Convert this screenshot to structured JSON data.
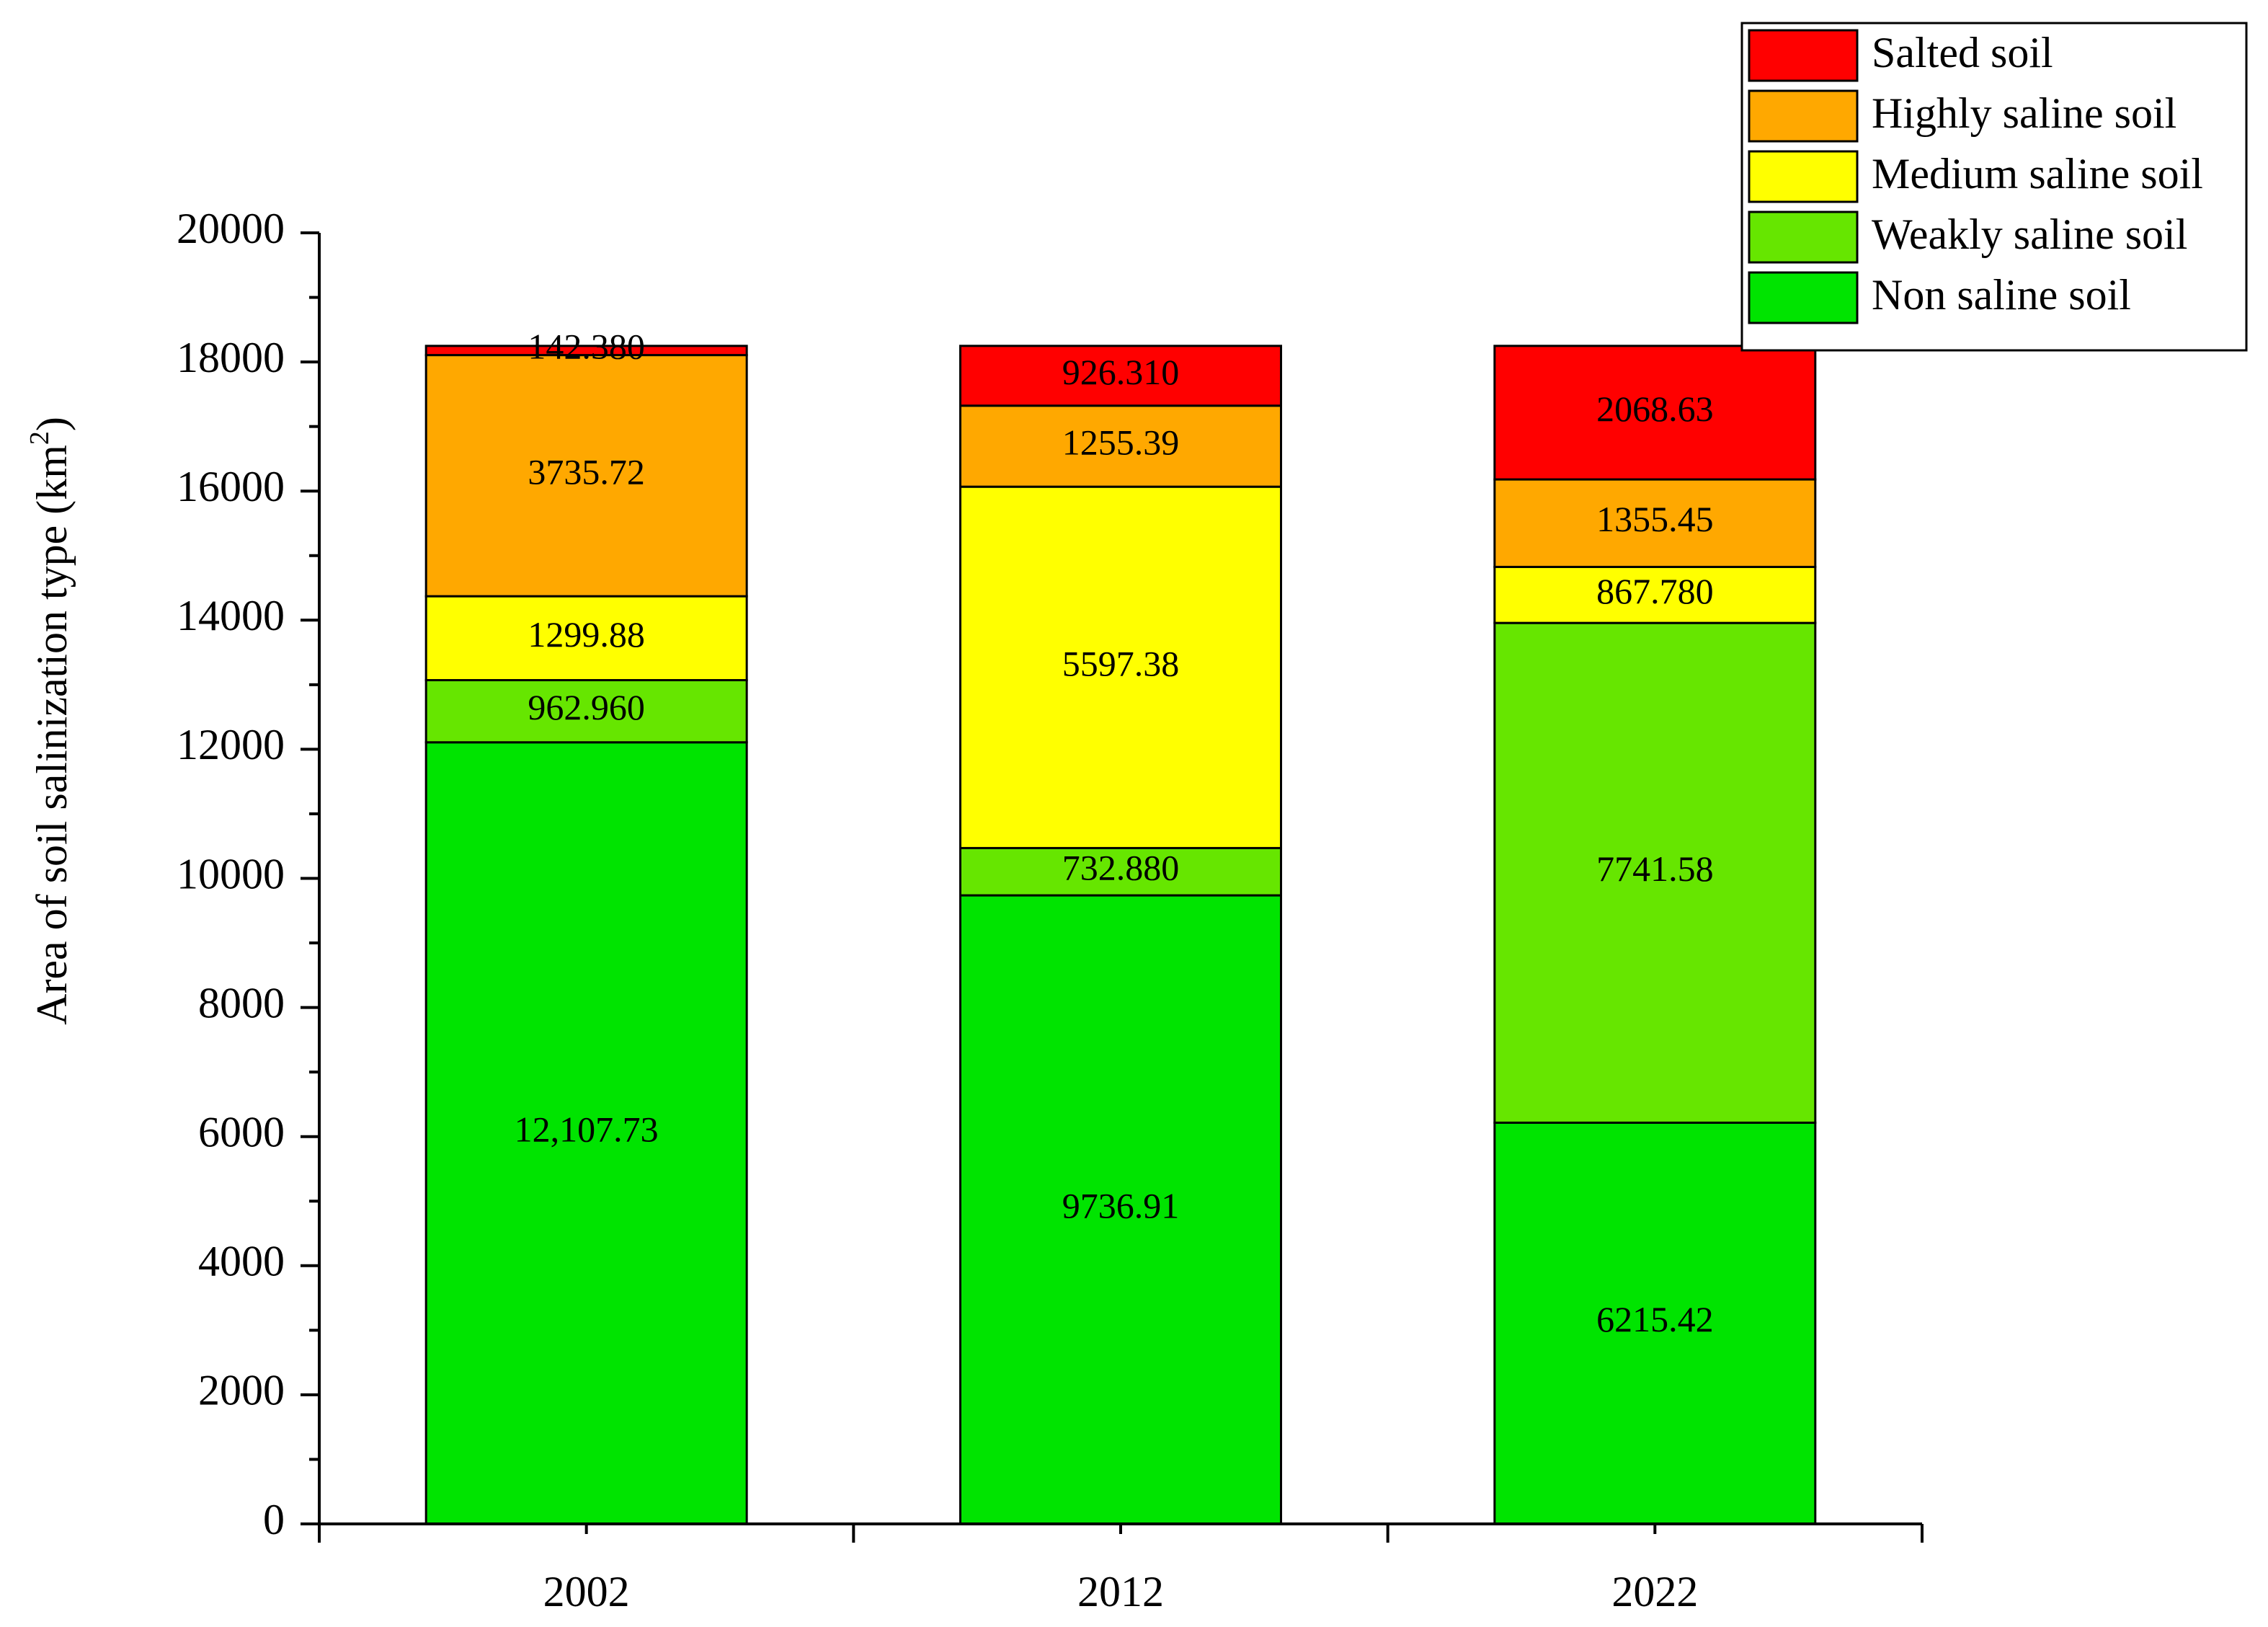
{
  "chart_data": {
    "type": "bar",
    "stacked": true,
    "categories": [
      "2002",
      "2012",
      "2022"
    ],
    "ylabel": "Area of soil salinization type (km²)",
    "ylabel_text": "Area of soil salinization type (km",
    "ylabel_sup": "2",
    "ylabel_close": ")",
    "xlabel": "",
    "ylim": [
      0,
      20000
    ],
    "yticks": [
      0,
      2000,
      4000,
      6000,
      8000,
      10000,
      12000,
      14000,
      16000,
      18000,
      20000
    ],
    "legend_position": "top-right",
    "series": [
      {
        "name": "Non saline soil",
        "color": "#00E400",
        "values": [
          12107.73,
          9736.91,
          6215.42
        ],
        "labels": [
          "12,107.73",
          "9736.91",
          "6215.42"
        ]
      },
      {
        "name": "Weakly saline soil",
        "color": "#66E600",
        "values": [
          962.96,
          732.88,
          7741.58
        ],
        "labels": [
          "962.960",
          "732.880",
          "7741.58"
        ]
      },
      {
        "name": "Medium saline soil",
        "color": "#FFFF00",
        "values": [
          1299.88,
          5597.38,
          867.78
        ],
        "labels": [
          "1299.88",
          "5597.38",
          "867.780"
        ]
      },
      {
        "name": "Highly saline soil",
        "color": "#FFA800",
        "values": [
          3735.72,
          1255.39,
          1355.45
        ],
        "labels": [
          "3735.72",
          "1255.39",
          "1355.45"
        ]
      },
      {
        "name": "Salted soil",
        "color": "#FF0000",
        "values": [
          142.38,
          926.31,
          2068.63
        ],
        "labels": [
          "142.380",
          "926.310",
          "2068.63"
        ]
      }
    ]
  }
}
